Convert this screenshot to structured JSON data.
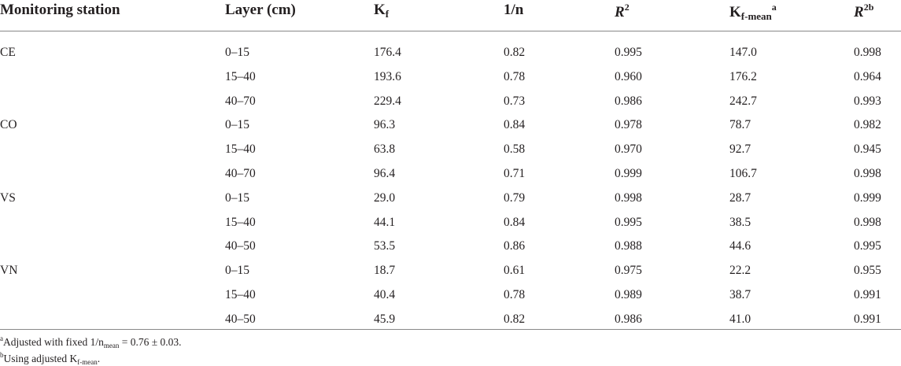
{
  "table": {
    "headers": {
      "station": "Monitoring station",
      "layer": "Layer (cm)",
      "kf_base": "K",
      "kf_sub": "f",
      "inv_n": "1/n",
      "r2_base": "R",
      "r2_sup": "2",
      "kfmean_base": "K",
      "kfmean_sub": "f-mean",
      "kfmean_sup": "a",
      "r2b_base": "R",
      "r2b_sup": "2b"
    },
    "rows": [
      {
        "station": "CE",
        "layer": "0–15",
        "kf": "176.4",
        "inv_n": "0.82",
        "r2": "0.995",
        "kf_mean": "147.0",
        "r2b": "0.998"
      },
      {
        "station": "",
        "layer": "15–40",
        "kf": "193.6",
        "inv_n": "0.78",
        "r2": "0.960",
        "kf_mean": "176.2",
        "r2b": "0.964"
      },
      {
        "station": "",
        "layer": "40–70",
        "kf": "229.4",
        "inv_n": "0.73",
        "r2": "0.986",
        "kf_mean": "242.7",
        "r2b": "0.993"
      },
      {
        "station": "CO",
        "layer": "0–15",
        "kf": "96.3",
        "inv_n": "0.84",
        "r2": "0.978",
        "kf_mean": "78.7",
        "r2b": "0.982"
      },
      {
        "station": "",
        "layer": "15–40",
        "kf": "63.8",
        "inv_n": "0.58",
        "r2": "0.970",
        "kf_mean": "92.7",
        "r2b": "0.945"
      },
      {
        "station": "",
        "layer": "40–70",
        "kf": "96.4",
        "inv_n": "0.71",
        "r2": "0.999",
        "kf_mean": "106.7",
        "r2b": "0.998"
      },
      {
        "station": "VS",
        "layer": "0–15",
        "kf": "29.0",
        "inv_n": "0.79",
        "r2": "0.998",
        "kf_mean": "28.7",
        "r2b": "0.999"
      },
      {
        "station": "",
        "layer": "15–40",
        "kf": "44.1",
        "inv_n": "0.84",
        "r2": "0.995",
        "kf_mean": "38.5",
        "r2b": "0.998"
      },
      {
        "station": "",
        "layer": "40–50",
        "kf": "53.5",
        "inv_n": "0.86",
        "r2": "0.988",
        "kf_mean": "44.6",
        "r2b": "0.995"
      },
      {
        "station": "VN",
        "layer": "0–15",
        "kf": "18.7",
        "inv_n": "0.61",
        "r2": "0.975",
        "kf_mean": "22.2",
        "r2b": "0.955"
      },
      {
        "station": "",
        "layer": "15–40",
        "kf": "40.4",
        "inv_n": "0.78",
        "r2": "0.989",
        "kf_mean": "38.7",
        "r2b": "0.991"
      },
      {
        "station": "",
        "layer": "40–50",
        "kf": "45.9",
        "inv_n": "0.82",
        "r2": "0.986",
        "kf_mean": "41.0",
        "r2b": "0.991"
      }
    ]
  },
  "footnotes": {
    "a": {
      "marker": "a",
      "text_before": "Adjusted with fixed 1/n",
      "sub": "mean",
      "text_after": " = 0.76 ± 0.03."
    },
    "b": {
      "marker": "b",
      "text_before": "Using adjusted K",
      "sub": "f-mean",
      "text_after": "."
    }
  }
}
